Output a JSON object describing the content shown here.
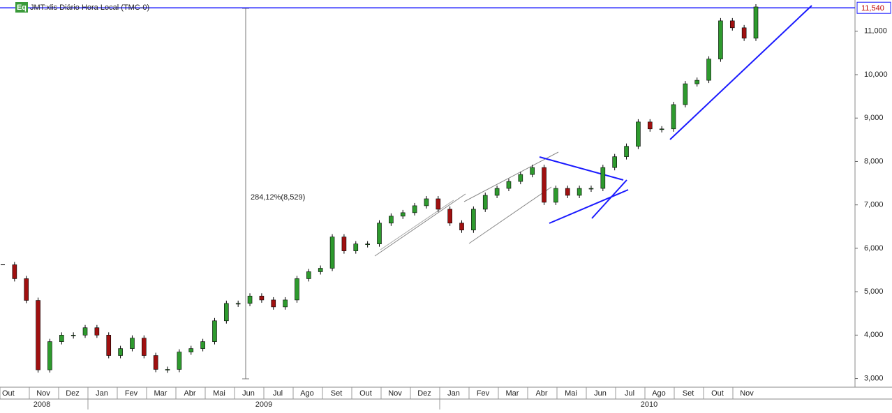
{
  "chart_data": {
    "type": "candlestick",
    "title": "JMT:xlis Diário Hora Local (TMC-0)",
    "icon_label": "Eq",
    "annotation": "284,12%(8,529)",
    "last_price": {
      "value": 11540,
      "label": "11,540"
    },
    "months": [
      "Out",
      "Nov",
      "Dez",
      "Jan",
      "Fev",
      "Mar",
      "Abr",
      "Mai",
      "Jun",
      "Jul",
      "Ago",
      "Set",
      "Out",
      "Nov",
      "Dez",
      "Jan",
      "Fev",
      "Mar",
      "Abr",
      "Mai",
      "Jun",
      "Jul",
      "Ago",
      "Set",
      "Out",
      "Nov"
    ],
    "years": [
      "2008",
      "2009",
      "2010"
    ],
    "ylim": [
      2800,
      11720
    ],
    "yticks": [
      {
        "value": 3000,
        "label": "3,000"
      },
      {
        "value": 4000,
        "label": "4,000"
      },
      {
        "value": 5000,
        "label": "5,000"
      },
      {
        "value": 6000,
        "label": "6,000"
      },
      {
        "value": 7000,
        "label": "7,000"
      },
      {
        "value": 8000,
        "label": "8,000"
      },
      {
        "value": 9000,
        "label": "9,000"
      },
      {
        "value": 10000,
        "label": "10,000"
      },
      {
        "value": 11000,
        "label": "11,000"
      }
    ],
    "up_color": "#2e9a2e",
    "down_color": "#a01010",
    "values": [
      5620,
      5300,
      4800,
      3200,
      3850,
      4000,
      4000,
      4170,
      4000,
      3530,
      3690,
      3930,
      3530,
      3210,
      3210,
      3610,
      3690,
      3850,
      4330,
      4730,
      4730,
      4900,
      4810,
      4650,
      4810,
      5300,
      5460,
      5540,
      6260,
      5940,
      6100,
      6100,
      6580,
      6740,
      6820,
      6980,
      7140,
      6900,
      6580,
      6420,
      6900,
      7220,
      7380,
      7540,
      7700,
      7860,
      7060,
      7380,
      7220,
      7380,
      7380,
      7860,
      8110,
      8350,
      8910,
      8750,
      8750,
      9310,
      9790,
      9870,
      10360,
      11240,
      11080,
      10840,
      11560
    ]
  }
}
